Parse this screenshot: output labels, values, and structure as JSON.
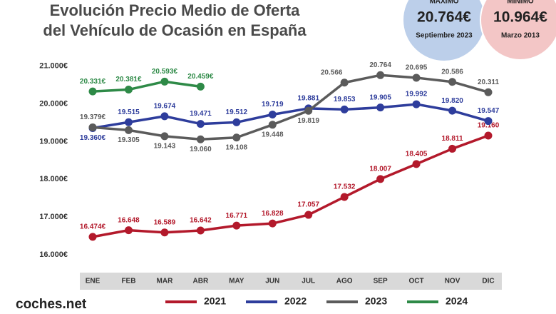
{
  "chart_data": {
    "type": "line",
    "title": [
      "Evolución Precio Medio de Oferta",
      "del Vehículo de Ocasión en España"
    ],
    "categories": [
      "ENE",
      "FEB",
      "MAR",
      "ABR",
      "MAY",
      "JUN",
      "JUL",
      "AGO",
      "SEP",
      "OCT",
      "NOV",
      "DIC"
    ],
    "series": [
      {
        "name": "2021",
        "color": "#b3192b",
        "values": [
          16474,
          16648,
          16589,
          16642,
          16771,
          16828,
          17057,
          17532,
          18007,
          18405,
          18811,
          19160
        ],
        "value_labels": [
          "16.474€",
          "16.648",
          "16.589",
          "16.642",
          "16.771",
          "16.828",
          "17.057",
          "17.532",
          "18.007",
          "18.405",
          "18.811",
          "19.160"
        ]
      },
      {
        "name": "2022",
        "color": "#2e3d9c",
        "values": [
          19360,
          19515,
          19674,
          19471,
          19512,
          19719,
          19881,
          19853,
          19905,
          19992,
          19820,
          19547
        ],
        "value_labels": [
          "19.360€",
          "19.515",
          "19.674",
          "19.471",
          "19.512",
          "19.719",
          "19.881",
          "19.853",
          "19.905",
          "19.992",
          "19.820",
          "19.547"
        ]
      },
      {
        "name": "2023",
        "color": "#5b5b5b",
        "values": [
          19379,
          19305,
          19143,
          19060,
          19108,
          19448,
          19819,
          20566,
          20764,
          20695,
          20586,
          20311
        ],
        "value_labels": [
          "19.379€",
          "19.305",
          "19.143",
          "19.060",
          "19.108",
          "19.448",
          "19.819",
          "20.566",
          "20.764",
          "20.695",
          "20.586",
          "20.311"
        ]
      },
      {
        "name": "2024",
        "color": "#2e8a47",
        "values": [
          20331,
          20381,
          20593,
          20459,
          null,
          null,
          null,
          null,
          null,
          null,
          null,
          null
        ],
        "value_labels": [
          "20.331€",
          "20.381€",
          "20.593€",
          "20.459€",
          null,
          null,
          null,
          null,
          null,
          null,
          null,
          null
        ]
      }
    ],
    "ylim": [
      15600,
      21300
    ],
    "yticks": [
      {
        "value": 16000,
        "label": "16.000€"
      },
      {
        "value": 17000,
        "label": "17.000€"
      },
      {
        "value": 18000,
        "label": "18.000€"
      },
      {
        "value": 19000,
        "label": "19.000€"
      },
      {
        "value": 20000,
        "label": "20.000€"
      },
      {
        "value": 21000,
        "label": "21.000€"
      }
    ],
    "grid": false,
    "legend": "bottom",
    "highlights": [
      {
        "label": "MÁXIMO",
        "value": "20.764€",
        "date": "Septiembre 2023",
        "color": "#bccfea"
      },
      {
        "label": "MÍNIMO",
        "value": "10.964€",
        "date": "Marzo 2013",
        "color": "#f3c6c6"
      }
    ],
    "brand": "coches.net"
  }
}
